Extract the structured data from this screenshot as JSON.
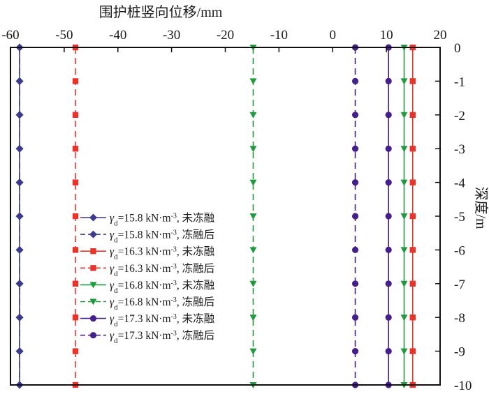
{
  "chart_data": {
    "type": "line",
    "x_axis": {
      "label": "围护桩竖向位移/mm",
      "position": "top",
      "range": [
        -60,
        20
      ],
      "ticks": [
        -60,
        -50,
        -40,
        -30,
        -20,
        -10,
        0,
        10,
        20
      ],
      "tick_labels": [
        "-60",
        "-50",
        "-40",
        "-30",
        "-20",
        "-10",
        "0",
        "10",
        "20"
      ]
    },
    "y_axis": {
      "label": "深度/m",
      "position": "right",
      "range": [
        -10,
        0
      ],
      "ticks": [
        0,
        -1,
        -2,
        -3,
        -4,
        -5,
        -6,
        -7,
        -8,
        -9,
        -10
      ],
      "tick_labels": [
        "0",
        "-1",
        "-2",
        "-3",
        "-4",
        "-5",
        "-6",
        "-7",
        "-8",
        "-9",
        "-10"
      ]
    },
    "grid": false,
    "legend_position": "center-left",
    "depths": [
      0,
      -1,
      -2,
      -3,
      -4,
      -5,
      -6,
      -7,
      -8,
      -9,
      -10
    ],
    "series": [
      {
        "name": "γd=15.8 kN·m-3, 未冻融",
        "legend_label": {
          "gamma": "γ",
          "sub": "d",
          "value": "=15.8 kN·m",
          "sup": "-3",
          "suffix": ", 未冻融"
        },
        "color": "#3c3a8c",
        "marker": "diamond",
        "dashed": false,
        "displacement": [
          -58.3,
          -58.3,
          -58.3,
          -58.3,
          -58.3,
          -58.3,
          -58.3,
          -58.3,
          -58.3,
          -58.3,
          -58.3
        ]
      },
      {
        "name": "γd=15.8 kN·m-3, 冻融后",
        "legend_label": {
          "gamma": "γ",
          "sub": "d",
          "value": "=15.8 kN·m",
          "sup": "-3",
          "suffix": ", 冻融后"
        },
        "color": "#3c3a8c",
        "marker": "diamond",
        "dashed": true,
        "displacement": [
          -58.3,
          -58.3,
          -58.3,
          -58.3,
          -58.3,
          -58.3,
          -58.3,
          -58.3,
          -58.3,
          -58.3,
          -58.3
        ]
      },
      {
        "name": "γd=16.3 kN·m-3, 未冻融",
        "legend_label": {
          "gamma": "γ",
          "sub": "d",
          "value": "=16.3 kN·m",
          "sup": "-3",
          "suffix": ", 未冻融"
        },
        "color": "#e8342a",
        "marker": "square",
        "dashed": false,
        "displacement": [
          14.9,
          14.9,
          14.9,
          14.9,
          14.9,
          14.9,
          14.9,
          14.9,
          14.9,
          14.9,
          14.9
        ]
      },
      {
        "name": "γd=16.3 kN·m-3, 冻融后",
        "legend_label": {
          "gamma": "γ",
          "sub": "d",
          "value": "=16.3 kN·m",
          "sup": "-3",
          "suffix": ", 冻融后"
        },
        "color": "#e8342a",
        "marker": "square",
        "dashed": true,
        "displacement": [
          -47.9,
          -47.9,
          -47.9,
          -47.9,
          -47.9,
          -47.9,
          -47.9,
          -47.9,
          -47.9,
          -47.9,
          -47.9
        ]
      },
      {
        "name": "γd=16.8 kN·m-3, 未冻融",
        "legend_label": {
          "gamma": "γ",
          "sub": "d",
          "value": "=16.8 kN·m",
          "sup": "-3",
          "suffix": ", 未冻融"
        },
        "color": "#1f9a3c",
        "marker": "triangle-down",
        "dashed": false,
        "displacement": [
          13.3,
          13.3,
          13.3,
          13.3,
          13.3,
          13.3,
          13.3,
          13.3,
          13.3,
          13.3,
          13.3
        ]
      },
      {
        "name": "γd=16.8 kN·m-3, 冻融后",
        "legend_label": {
          "gamma": "γ",
          "sub": "d",
          "value": "=16.8 kN·m",
          "sup": "-3",
          "suffix": ", 冻融后"
        },
        "color": "#1f9a3c",
        "marker": "triangle-down",
        "dashed": true,
        "displacement": [
          -14.8,
          -14.8,
          -14.8,
          -14.8,
          -14.8,
          -14.8,
          -14.8,
          -14.8,
          -14.8,
          -14.8,
          -14.8
        ]
      },
      {
        "name": "γd=17.3 kN·m-3, 未冻融",
        "legend_label": {
          "gamma": "γ",
          "sub": "d",
          "value": "=17.3 kN·m",
          "sup": "-3",
          "suffix": ", 未冻融"
        },
        "color": "#45208a",
        "marker": "circle",
        "dashed": false,
        "displacement": [
          10.4,
          10.4,
          10.4,
          10.4,
          10.4,
          10.4,
          10.4,
          10.4,
          10.4,
          10.4,
          10.4
        ]
      },
      {
        "name": "γd=17.3 kN·m-3, 冻融后",
        "legend_label": {
          "gamma": "γ",
          "sub": "d",
          "value": "=17.3 kN·m",
          "sup": "-3",
          "suffix": ", 冻融后"
        },
        "color": "#45208a",
        "marker": "circle",
        "dashed": true,
        "displacement": [
          4.2,
          4.2,
          4.2,
          4.2,
          4.2,
          4.2,
          4.2,
          4.2,
          4.2,
          4.2,
          4.2
        ]
      }
    ]
  }
}
